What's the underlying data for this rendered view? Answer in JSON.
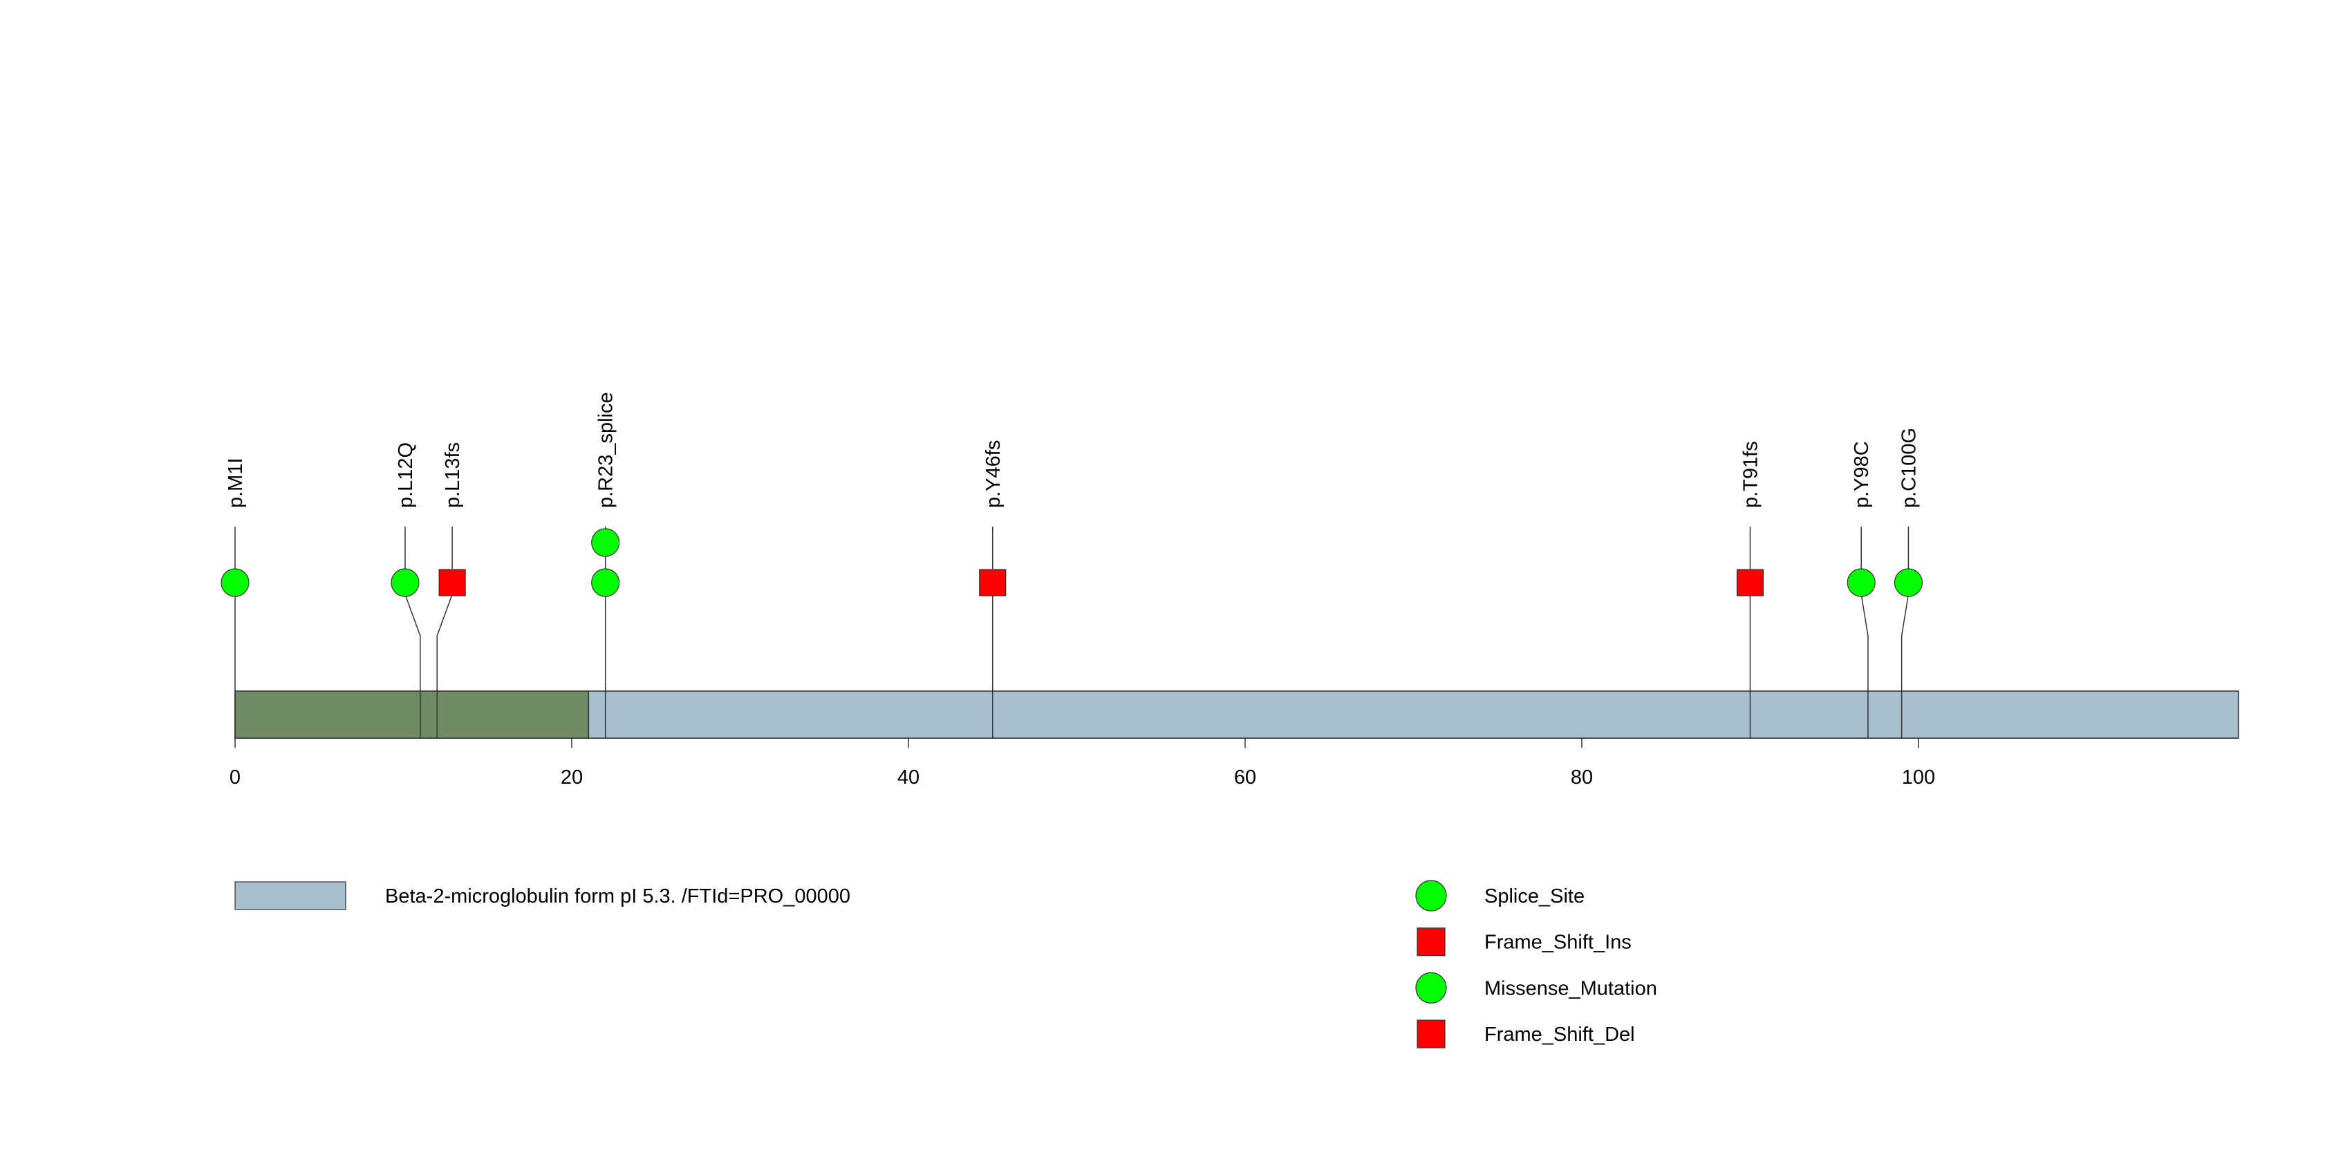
{
  "chart_data": {
    "type": "lollipop",
    "title": "",
    "xlabel": "",
    "ylabel": "",
    "xlim": [
      0,
      119
    ],
    "xticks": [
      0,
      20,
      40,
      60,
      80,
      100
    ],
    "protein_length": 119,
    "domains": [
      {
        "name": "signal",
        "start": 0,
        "end": 21,
        "color": "#718c64",
        "in_legend": false
      },
      {
        "name": "Beta-2-microglobulin form pI 5.3. /FTId=PRO_00000",
        "start": 21,
        "end": 119,
        "color": "#a9bfcd",
        "in_legend": true
      }
    ],
    "mutations": [
      {
        "label": "p.M1I",
        "position": 0,
        "display_position": 0,
        "stack": [
          {
            "type": "Missense_Mutation"
          }
        ]
      },
      {
        "label": "p.L12Q",
        "position": 11,
        "display_position": 10.1,
        "stack": [
          {
            "type": "Missense_Mutation"
          }
        ]
      },
      {
        "label": "p.L13fs",
        "position": 12,
        "display_position": 12.9,
        "stack": [
          {
            "type": "Frame_Shift_Del"
          }
        ]
      },
      {
        "label": "p.R23_splice",
        "position": 22,
        "display_position": 22,
        "stack": [
          {
            "type": "Splice_Site"
          },
          {
            "type": "Splice_Site"
          }
        ]
      },
      {
        "label": "p.Y46fs",
        "position": 45,
        "display_position": 45,
        "stack": [
          {
            "type": "Frame_Shift_Del"
          }
        ]
      },
      {
        "label": "p.T91fs",
        "position": 90,
        "display_position": 90,
        "stack": [
          {
            "type": "Frame_Shift_Del"
          }
        ]
      },
      {
        "label": "p.Y98C",
        "position": 97,
        "display_position": 96.6,
        "stack": [
          {
            "type": "Missense_Mutation"
          }
        ]
      },
      {
        "label": "p.C100G",
        "position": 99,
        "display_position": 99.4,
        "stack": [
          {
            "type": "Missense_Mutation"
          }
        ]
      }
    ],
    "mutation_types": [
      {
        "name": "Splice_Site",
        "shape": "circle",
        "color": "#00ff00"
      },
      {
        "name": "Frame_Shift_Ins",
        "shape": "square",
        "color": "#ff0000"
      },
      {
        "name": "Missense_Mutation",
        "shape": "circle",
        "color": "#00ff00"
      },
      {
        "name": "Frame_Shift_Del",
        "shape": "square",
        "color": "#ff0000"
      }
    ],
    "legend_position": "bottom"
  }
}
